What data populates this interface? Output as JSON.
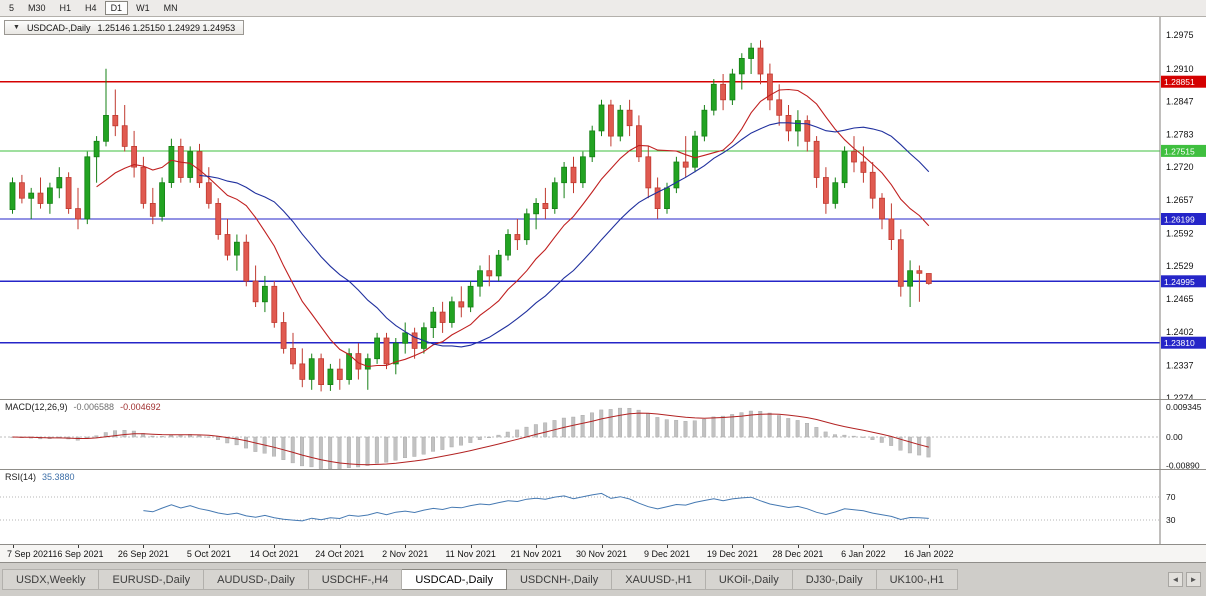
{
  "toolbar": {
    "timeframes": [
      "5",
      "M30",
      "H1",
      "H4",
      "D1",
      "W1",
      "MN"
    ],
    "active_timeframe": "D1"
  },
  "chart": {
    "collapse_icon": "▼",
    "symbol": "USDCAD-,Daily",
    "ohlc_text": "1.25146 1.25150 1.24929 1.24953"
  },
  "price_axis": {
    "ticks": [
      "1.2975",
      "1.2910",
      "1.2847",
      "1.2783",
      "1.2720",
      "1.2657",
      "1.2592",
      "1.2529",
      "1.2465",
      "1.2402",
      "1.2337",
      "1.2274"
    ],
    "levels": [
      {
        "price": 1.28851,
        "label": "1.28851",
        "color": "#d40000"
      },
      {
        "price": 1.27515,
        "label": "1.27515",
        "color": "#3fbf3f"
      },
      {
        "price": 1.26199,
        "label": "1.26199",
        "color": "#2525c8"
      },
      {
        "price": 1.24995,
        "label": "1.24995",
        "color": "#2525c8"
      },
      {
        "price": 1.2381,
        "label": "1.23810",
        "color": "#2525c8"
      }
    ]
  },
  "chart_data": {
    "type": "candlestick",
    "title": "USDCAD-,Daily",
    "y_range": [
      1.227,
      1.301
    ],
    "x_labels": [
      "7 Sep 2021",
      "16 Sep 2021",
      "26 Sep 2021",
      "5 Oct 2021",
      "14 Oct 2021",
      "24 Oct 2021",
      "2 Nov 2021",
      "11 Nov 2021",
      "21 Nov 2021",
      "30 Nov 2021",
      "9 Dec 2021",
      "19 Dec 2021",
      "28 Dec 2021",
      "6 Jan 2022",
      "16 Jan 2022"
    ],
    "candles": [
      [
        1.2638,
        1.27,
        1.263,
        1.269
      ],
      [
        1.269,
        1.2705,
        1.265,
        1.266
      ],
      [
        1.266,
        1.268,
        1.262,
        1.267
      ],
      [
        1.267,
        1.27,
        1.264,
        1.265
      ],
      [
        1.265,
        1.269,
        1.263,
        1.268
      ],
      [
        1.268,
        1.272,
        1.266,
        1.27
      ],
      [
        1.27,
        1.271,
        1.263,
        1.264
      ],
      [
        1.264,
        1.268,
        1.26,
        1.262
      ],
      [
        1.262,
        1.275,
        1.261,
        1.274
      ],
      [
        1.274,
        1.278,
        1.269,
        1.277
      ],
      [
        1.277,
        1.291,
        1.276,
        1.282
      ],
      [
        1.282,
        1.287,
        1.278,
        1.28
      ],
      [
        1.28,
        1.284,
        1.275,
        1.276
      ],
      [
        1.276,
        1.279,
        1.27,
        1.272
      ],
      [
        1.272,
        1.274,
        1.264,
        1.265
      ],
      [
        1.265,
        1.268,
        1.261,
        1.2625
      ],
      [
        1.2625,
        1.27,
        1.2615,
        1.269
      ],
      [
        1.269,
        1.2775,
        1.268,
        1.276
      ],
      [
        1.276,
        1.2775,
        1.269,
        1.27
      ],
      [
        1.27,
        1.276,
        1.269,
        1.275
      ],
      [
        1.275,
        1.2765,
        1.268,
        1.269
      ],
      [
        1.269,
        1.272,
        1.264,
        1.265
      ],
      [
        1.265,
        1.266,
        1.258,
        1.259
      ],
      [
        1.259,
        1.262,
        1.254,
        1.255
      ],
      [
        1.255,
        1.259,
        1.252,
        1.2575
      ],
      [
        1.2575,
        1.259,
        1.249,
        1.25
      ],
      [
        1.25,
        1.253,
        1.245,
        1.246
      ],
      [
        1.246,
        1.251,
        1.244,
        1.249
      ],
      [
        1.249,
        1.25,
        1.241,
        1.242
      ],
      [
        1.242,
        1.244,
        1.236,
        1.237
      ],
      [
        1.237,
        1.24,
        1.233,
        1.234
      ],
      [
        1.234,
        1.237,
        1.2295,
        1.231
      ],
      [
        1.231,
        1.236,
        1.229,
        1.235
      ],
      [
        1.235,
        1.236,
        1.2287,
        1.23
      ],
      [
        1.23,
        1.234,
        1.2288,
        1.233
      ],
      [
        1.233,
        1.235,
        1.229,
        1.231
      ],
      [
        1.231,
        1.237,
        1.23,
        1.236
      ],
      [
        1.236,
        1.238,
        1.231,
        1.233
      ],
      [
        1.233,
        1.236,
        1.229,
        1.235
      ],
      [
        1.235,
        1.24,
        1.234,
        1.239
      ],
      [
        1.239,
        1.24,
        1.233,
        1.234
      ],
      [
        1.234,
        1.239,
        1.232,
        1.238
      ],
      [
        1.238,
        1.242,
        1.236,
        1.24
      ],
      [
        1.24,
        1.241,
        1.235,
        1.237
      ],
      [
        1.237,
        1.242,
        1.236,
        1.241
      ],
      [
        1.241,
        1.245,
        1.239,
        1.244
      ],
      [
        1.244,
        1.246,
        1.24,
        1.242
      ],
      [
        1.242,
        1.247,
        1.241,
        1.246
      ],
      [
        1.246,
        1.249,
        1.243,
        1.245
      ],
      [
        1.245,
        1.25,
        1.244,
        1.249
      ],
      [
        1.249,
        1.253,
        1.247,
        1.252
      ],
      [
        1.252,
        1.255,
        1.249,
        1.251
      ],
      [
        1.251,
        1.256,
        1.25,
        1.255
      ],
      [
        1.255,
        1.26,
        1.254,
        1.259
      ],
      [
        1.259,
        1.262,
        1.256,
        1.258
      ],
      [
        1.258,
        1.264,
        1.257,
        1.263
      ],
      [
        1.263,
        1.266,
        1.26,
        1.265
      ],
      [
        1.265,
        1.268,
        1.262,
        1.264
      ],
      [
        1.264,
        1.27,
        1.263,
        1.269
      ],
      [
        1.269,
        1.273,
        1.266,
        1.272
      ],
      [
        1.272,
        1.274,
        1.267,
        1.269
      ],
      [
        1.269,
        1.275,
        1.268,
        1.274
      ],
      [
        1.274,
        1.28,
        1.273,
        1.279
      ],
      [
        1.279,
        1.285,
        1.278,
        1.284
      ],
      [
        1.284,
        1.285,
        1.276,
        1.278
      ],
      [
        1.278,
        1.284,
        1.277,
        1.283
      ],
      [
        1.283,
        1.285,
        1.278,
        1.28
      ],
      [
        1.28,
        1.282,
        1.273,
        1.274
      ],
      [
        1.274,
        1.276,
        1.266,
        1.268
      ],
      [
        1.268,
        1.27,
        1.262,
        1.264
      ],
      [
        1.264,
        1.269,
        1.263,
        1.268
      ],
      [
        1.268,
        1.274,
        1.267,
        1.273
      ],
      [
        1.273,
        1.278,
        1.27,
        1.272
      ],
      [
        1.272,
        1.279,
        1.271,
        1.278
      ],
      [
        1.278,
        1.284,
        1.277,
        1.283
      ],
      [
        1.283,
        1.289,
        1.282,
        1.288
      ],
      [
        1.288,
        1.29,
        1.283,
        1.285
      ],
      [
        1.285,
        1.291,
        1.284,
        1.29
      ],
      [
        1.29,
        1.294,
        1.287,
        1.293
      ],
      [
        1.293,
        1.296,
        1.29,
        1.295
      ],
      [
        1.295,
        1.2965,
        1.288,
        1.29
      ],
      [
        1.29,
        1.292,
        1.283,
        1.285
      ],
      [
        1.285,
        1.288,
        1.28,
        1.282
      ],
      [
        1.282,
        1.284,
        1.277,
        1.279
      ],
      [
        1.279,
        1.283,
        1.276,
        1.281
      ],
      [
        1.281,
        1.282,
        1.275,
        1.277
      ],
      [
        1.277,
        1.278,
        1.268,
        1.27
      ],
      [
        1.27,
        1.272,
        1.263,
        1.265
      ],
      [
        1.265,
        1.27,
        1.264,
        1.269
      ],
      [
        1.269,
        1.276,
        1.268,
        1.275
      ],
      [
        1.275,
        1.278,
        1.271,
        1.273
      ],
      [
        1.273,
        1.276,
        1.269,
        1.271
      ],
      [
        1.271,
        1.273,
        1.264,
        1.266
      ],
      [
        1.266,
        1.267,
        1.26,
        1.262
      ],
      [
        1.262,
        1.265,
        1.256,
        1.258
      ],
      [
        1.258,
        1.26,
        1.247,
        1.249
      ],
      [
        1.249,
        1.254,
        1.245,
        1.252
      ],
      [
        1.252,
        1.253,
        1.246,
        1.2515
      ],
      [
        1.25146,
        1.2515,
        1.24929,
        1.24953
      ]
    ],
    "candle_colors": {
      "bull": "#22a322",
      "bull_stroke": "#168016",
      "bear": "#e05a50",
      "bear_stroke": "#c03a30"
    },
    "moving_averages": [
      {
        "name": "MA fast",
        "period": 10,
        "color": "#c02020"
      },
      {
        "name": "MA slow",
        "period": 21,
        "color": "#20309e"
      }
    ],
    "macd": {
      "label": "MACD(12,26,9)",
      "main_value": "-0.006588",
      "signal_value": "-0.004692",
      "fast": 12,
      "slow": 26,
      "signal": 9,
      "axis_ticks": [
        "0.009345",
        "0.00",
        "-0.00890"
      ],
      "histogram_color": "#c2c2c2",
      "signal_color": "#b22222"
    },
    "rsi": {
      "label": "RSI(14)",
      "value": "35.3880",
      "period": 14,
      "levels": [
        70,
        30
      ],
      "axis_ticks": [
        "70",
        "30"
      ],
      "line_color": "#4579b2"
    }
  },
  "tabs": {
    "items": [
      "USDX,Weekly",
      "EURUSD-,Daily",
      "AUDUSD-,Daily",
      "USDCHF-,H4",
      "USDCAD-,Daily",
      "USDCNH-,Daily",
      "XAUUSD-,H1",
      "UKOil-,Daily",
      "DJ30-,Daily",
      "UK100-,H1"
    ],
    "active": "USDCAD-,Daily",
    "scroll_left_icon": "◄",
    "scroll_right_icon": "►"
  }
}
